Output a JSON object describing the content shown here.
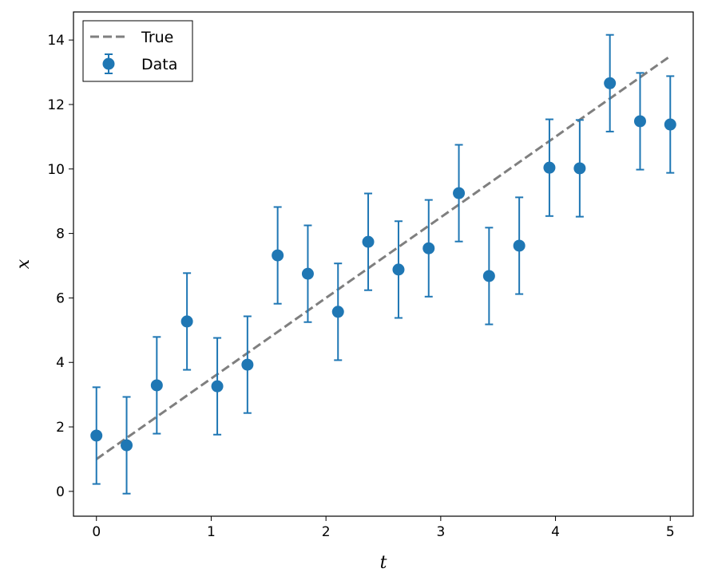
{
  "chart_data": {
    "type": "scatter",
    "xlabel": "t",
    "ylabel": "x",
    "xlim": [
      -0.2,
      5.2
    ],
    "ylim": [
      -0.77,
      14.87
    ],
    "xticks": [
      0,
      1,
      2,
      3,
      4,
      5
    ],
    "yticks": [
      0,
      2,
      4,
      6,
      8,
      10,
      12,
      14
    ],
    "grid": false,
    "legend_position": "top-left",
    "series": [
      {
        "name": "True",
        "kind": "dashed-line",
        "color": "#7f7f7f",
        "x": [
          0,
          5
        ],
        "y": [
          1.0,
          13.5
        ]
      },
      {
        "name": "Data",
        "kind": "errorbar",
        "color": "#1f77b4",
        "x": [
          0,
          0.263,
          0.526,
          0.789,
          1.053,
          1.316,
          1.579,
          1.842,
          2.105,
          2.368,
          2.632,
          2.895,
          3.158,
          3.421,
          3.684,
          3.947,
          4.211,
          4.474,
          4.737,
          5.0
        ],
        "y": [
          1.73,
          1.43,
          3.29,
          5.27,
          3.26,
          3.93,
          7.32,
          6.75,
          5.57,
          7.74,
          6.88,
          7.54,
          9.25,
          6.68,
          7.62,
          10.04,
          10.02,
          12.66,
          11.48,
          11.38
        ],
        "yerr": 1.5
      }
    ]
  }
}
